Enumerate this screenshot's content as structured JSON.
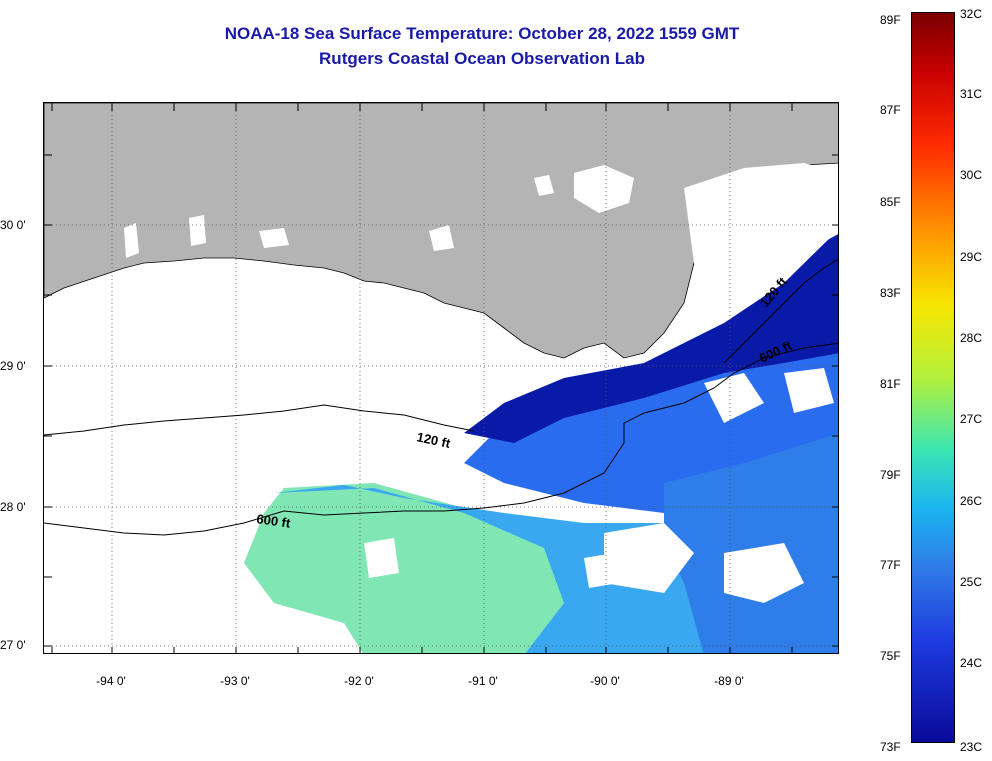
{
  "title": {
    "line1": "NOAA-18 Sea Surface Temperature:  October 28, 2022 1559 GMT",
    "line2": "Rutgers Coastal Ocean Observation Lab"
  },
  "map": {
    "lat_labels": [
      "30 0'",
      "29 0'",
      "28 0'",
      "27 0'"
    ],
    "lon_labels": [
      "-94 0'",
      "-93 0'",
      "-92 0'",
      "-91 0'",
      "-90 0'",
      "-89 0'"
    ],
    "contour_labels": [
      "120 ft",
      "600 ft",
      "120 ft",
      "600 ft"
    ],
    "colors": {
      "land": "#b4b4b4",
      "cloud": "#ffffff",
      "warm_water": "#7fe6b4",
      "mid_water": "#3aa8f0",
      "cool_water": "#1f4fe0",
      "cold_water": "#0a1aa8"
    }
  },
  "colorbar": {
    "fahrenheit_labels": [
      "89F",
      "87F",
      "85F",
      "83F",
      "81F",
      "79F",
      "77F",
      "75F",
      "73F"
    ],
    "celsius_labels": [
      "32C",
      "31C",
      "30C",
      "29C",
      "28C",
      "27C",
      "26C",
      "25C",
      "24C",
      "23C"
    ],
    "range_c": [
      23,
      32
    ],
    "range_f": [
      73,
      89
    ]
  }
}
